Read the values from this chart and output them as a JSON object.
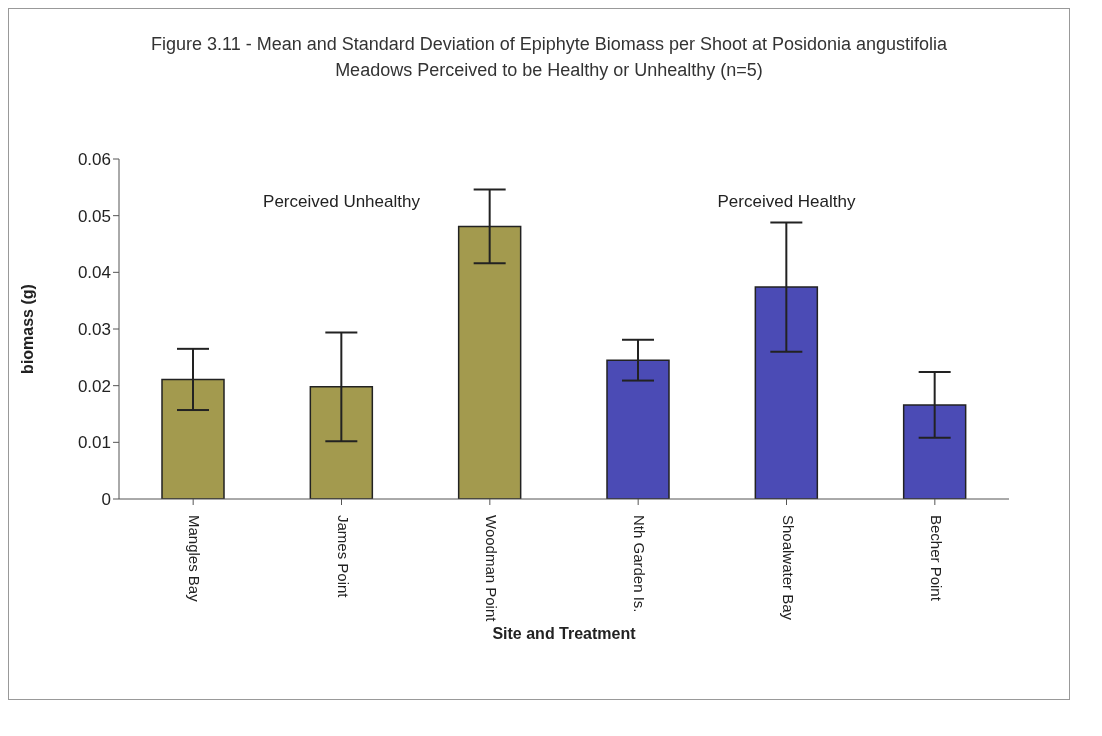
{
  "chart_data": {
    "type": "bar",
    "title": "Figure 3.11 - Mean and Standard Deviation of Epiphyte Biomass per Shoot at Posidonia angustifolia Meadows Perceived to be Healthy or Unhealthy (n=5)",
    "xlabel": "Site and Treatment",
    "ylabel": "biomass (g)",
    "categories": [
      "Mangles Bay",
      "James Point",
      "Woodman Point",
      "Nth Garden Is.",
      "Shoalwater Bay",
      "Becher Point"
    ],
    "values": [
      0.0211,
      0.0198,
      0.0481,
      0.0245,
      0.0374,
      0.0166
    ],
    "errors": [
      0.0054,
      0.0096,
      0.0065,
      0.0036,
      0.0114,
      0.0058
    ],
    "colors": [
      "#a39a4e",
      "#a39a4e",
      "#a39a4e",
      "#4b4bb5",
      "#4b4bb5",
      "#4b4bb5"
    ],
    "ylim": [
      0,
      0.06
    ],
    "yticks": [
      0,
      0.01,
      0.02,
      0.03,
      0.04,
      0.05,
      0.06
    ],
    "annotations": [
      "Perceived Unhealthy",
      "Perceived Healthy"
    ],
    "grid": false,
    "legend": false
  }
}
